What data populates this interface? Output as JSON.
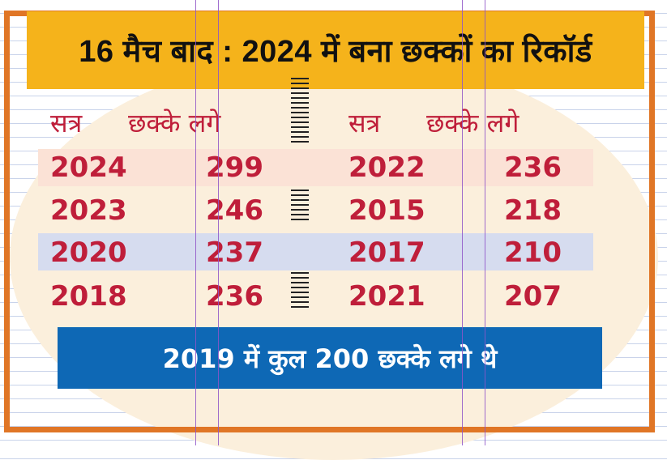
{
  "title": "16 मैच बाद : 2024 में बना छक्कों का रिकॉर्ड",
  "table": {
    "left_headers": {
      "season": "सत्र",
      "sixes": "छक्के लगे"
    },
    "right_headers": {
      "season": "सत्र",
      "sixes": "छक्के लगे"
    },
    "left_rows": [
      {
        "season": "2024",
        "sixes": "299"
      },
      {
        "season": "2023",
        "sixes": "246"
      },
      {
        "season": "2020",
        "sixes": "237"
      },
      {
        "season": "2018",
        "sixes": "236"
      }
    ],
    "right_rows": [
      {
        "season": "2022",
        "sixes": "236"
      },
      {
        "season": "2015",
        "sixes": "218"
      },
      {
        "season": "2017",
        "sixes": "210"
      },
      {
        "season": "2021",
        "sixes": "207"
      }
    ]
  },
  "footer": "2019 में कुल 200 छक्के लगे थे",
  "colors": {
    "frame": "#e07626",
    "title_bg": "#f5b31b",
    "text_red": "#bf1e3a",
    "footer_bg": "#0e68b5",
    "row_pink": "#fbe2d6",
    "row_blue": "#d6dcef"
  }
}
